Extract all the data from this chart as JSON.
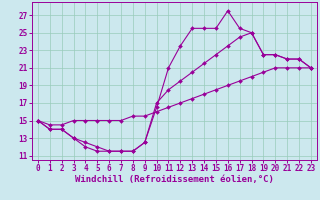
{
  "bg_color": "#cce8ee",
  "grid_color": "#99ccbb",
  "line_color": "#990099",
  "marker_color": "#990099",
  "xlabel": "Windchill (Refroidissement éolien,°C)",
  "xlabel_fontsize": 6.5,
  "tick_fontsize": 5.5,
  "xlim": [
    -0.5,
    23.5
  ],
  "ylim": [
    10.5,
    28.5
  ],
  "yticks": [
    11,
    13,
    15,
    17,
    19,
    21,
    23,
    25,
    27
  ],
  "xticks": [
    0,
    1,
    2,
    3,
    4,
    5,
    6,
    7,
    8,
    9,
    10,
    11,
    12,
    13,
    14,
    15,
    16,
    17,
    18,
    19,
    20,
    21,
    22,
    23
  ],
  "series": [
    {
      "x": [
        0,
        1,
        2,
        3,
        4,
        5,
        6,
        7,
        8,
        9,
        10,
        11,
        12,
        13,
        14,
        15,
        16,
        17,
        18,
        19,
        20,
        21,
        22,
        23
      ],
      "y": [
        15,
        14,
        14,
        13,
        12,
        11.5,
        11.5,
        11.5,
        11.5,
        12.5,
        16.5,
        21,
        23.5,
        25.5,
        25.5,
        25.5,
        27.5,
        25.5,
        25,
        22.5,
        22.5,
        22,
        22,
        21
      ]
    },
    {
      "x": [
        0,
        1,
        2,
        3,
        4,
        5,
        6,
        7,
        8,
        9,
        10,
        11,
        12,
        13,
        14,
        15,
        16,
        17,
        18,
        19,
        20,
        21,
        22,
        23
      ],
      "y": [
        15,
        14,
        14,
        13,
        12.5,
        12,
        11.5,
        11.5,
        11.5,
        12.5,
        17,
        18.5,
        19.5,
        20.5,
        21.5,
        22.5,
        23.5,
        24.5,
        25,
        22.5,
        22.5,
        22,
        22,
        21
      ]
    },
    {
      "x": [
        0,
        1,
        2,
        3,
        4,
        5,
        6,
        7,
        8,
        9,
        10,
        11,
        12,
        13,
        14,
        15,
        16,
        17,
        18,
        19,
        20,
        21,
        22,
        23
      ],
      "y": [
        15,
        14.5,
        14.5,
        15,
        15,
        15,
        15,
        15,
        15.5,
        15.5,
        16,
        16.5,
        17,
        17.5,
        18,
        18.5,
        19,
        19.5,
        20,
        20.5,
        21,
        21,
        21,
        21
      ]
    }
  ]
}
